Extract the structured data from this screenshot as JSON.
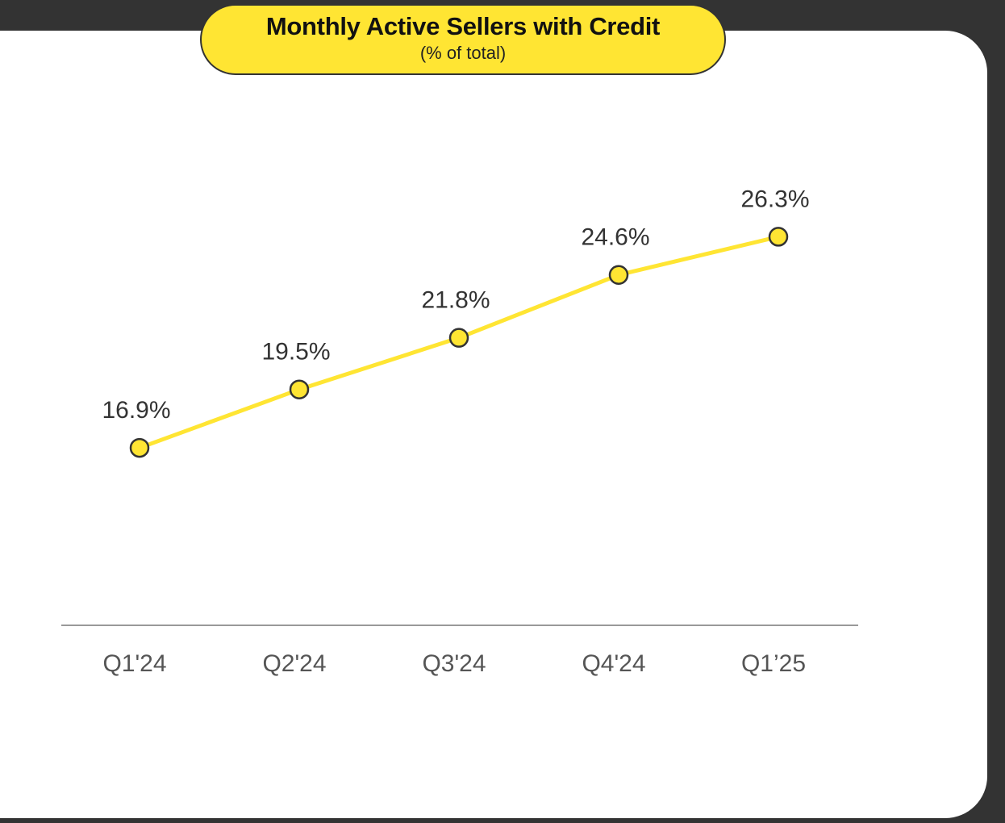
{
  "colors": {
    "line": "#ffe533",
    "marker_fill": "#ffe533",
    "marker_stroke": "#333333",
    "axis": "#999999",
    "background_frame": "#333333",
    "panel": "#ffffff"
  },
  "chart_data": {
    "type": "line",
    "title": "Monthly Active Sellers with Credit",
    "subtitle": "(% of total)",
    "categories": [
      "Q1'24",
      "Q2'24",
      "Q3'24",
      "Q4'24",
      "Q1’25"
    ],
    "series": [
      {
        "values": [
          16.9,
          19.5,
          21.8,
          24.6,
          26.3
        ],
        "labels": [
          "16.9%",
          "19.5%",
          "21.8%",
          "24.6%",
          "26.3%"
        ]
      }
    ],
    "ylim": [
      9,
      27.5
    ],
    "grid": false,
    "legend": "none"
  }
}
